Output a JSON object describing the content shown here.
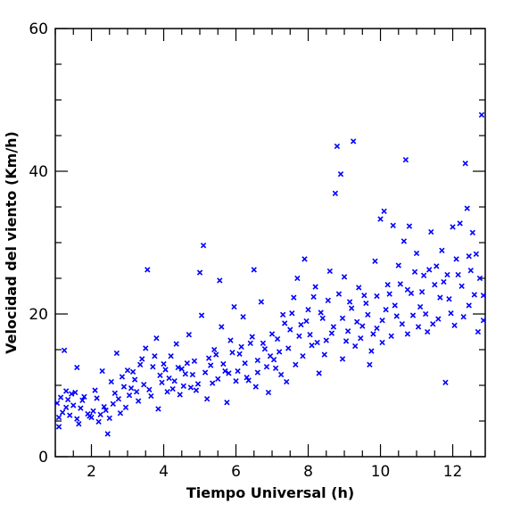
{
  "chart_data": {
    "type": "scatter",
    "xlabel": "Tiempo Universal (h)",
    "ylabel": "Velocidad del viento (Km/h)",
    "xlim": [
      1,
      12.9
    ],
    "ylim": [
      0,
      60
    ],
    "x_ticks": [
      2,
      4,
      6,
      8,
      10,
      12
    ],
    "y_ticks": [
      0,
      20,
      40,
      60
    ],
    "x_tick_labels": [
      "2",
      "4",
      "6",
      "8",
      "10",
      "12"
    ],
    "y_tick_labels": [
      "0",
      "20",
      "40",
      "60"
    ],
    "marker": "x",
    "marker_color": "#0000ff",
    "grid": false,
    "series": [
      {
        "points": [
          [
            1.05,
            7.5
          ],
          [
            1.1,
            4.2
          ],
          [
            1.15,
            8.3
          ],
          [
            1.2,
            6.2
          ],
          [
            1.25,
            14.9
          ],
          [
            1.3,
            9.2
          ],
          [
            1.35,
            8.0
          ],
          [
            1.4,
            5.8
          ],
          [
            1.5,
            7.2
          ],
          [
            1.55,
            9.0
          ],
          [
            1.6,
            12.5
          ],
          [
            1.65,
            4.6
          ],
          [
            1.7,
            6.8
          ],
          [
            1.8,
            8.4
          ],
          [
            1.9,
            6.0
          ],
          [
            2.0,
            5.5
          ],
          [
            2.1,
            9.3
          ],
          [
            2.2,
            4.9
          ],
          [
            2.3,
            12.0
          ],
          [
            2.4,
            6.5
          ],
          [
            2.45,
            3.2
          ],
          [
            2.55,
            10.5
          ],
          [
            2.6,
            7.4
          ],
          [
            2.7,
            14.5
          ],
          [
            2.75,
            8.1
          ],
          [
            2.85,
            11.2
          ],
          [
            2.95,
            6.9
          ],
          [
            3.0,
            12.1
          ],
          [
            3.1,
            9.6
          ],
          [
            3.2,
            10.8
          ],
          [
            3.3,
            7.8
          ],
          [
            3.4,
            13.7
          ],
          [
            3.5,
            15.2
          ],
          [
            3.55,
            26.2
          ],
          [
            3.6,
            9.4
          ],
          [
            3.7,
            12.6
          ],
          [
            3.8,
            16.6
          ],
          [
            3.85,
            6.7
          ],
          [
            3.9,
            11.4
          ],
          [
            4.0,
            13.0
          ],
          [
            4.1,
            9.1
          ],
          [
            4.2,
            14.1
          ],
          [
            4.3,
            10.6
          ],
          [
            4.35,
            15.8
          ],
          [
            4.45,
            8.7
          ],
          [
            4.5,
            12.3
          ],
          [
            4.6,
            11.6
          ],
          [
            4.7,
            17.1
          ],
          [
            4.75,
            9.7
          ],
          [
            4.85,
            13.4
          ],
          [
            4.95,
            10.2
          ],
          [
            5.0,
            25.8
          ],
          [
            5.05,
            19.8
          ],
          [
            5.1,
            29.6
          ],
          [
            5.2,
            8.1
          ],
          [
            5.3,
            12.8
          ],
          [
            5.4,
            15.0
          ],
          [
            5.5,
            10.9
          ],
          [
            5.55,
            24.7
          ],
          [
            5.6,
            18.2
          ],
          [
            5.7,
            12.0
          ],
          [
            5.75,
            7.6
          ],
          [
            5.85,
            16.3
          ],
          [
            5.95,
            21.0
          ],
          [
            6.0,
            10.6
          ],
          [
            6.1,
            14.4
          ],
          [
            6.2,
            19.6
          ],
          [
            6.3,
            11.1
          ],
          [
            6.4,
            15.9
          ],
          [
            6.5,
            26.2
          ],
          [
            6.55,
            9.8
          ],
          [
            6.6,
            13.5
          ],
          [
            6.7,
            21.7
          ],
          [
            6.8,
            15.1
          ],
          [
            6.9,
            9.0
          ],
          [
            7.0,
            17.2
          ],
          [
            7.1,
            12.4
          ],
          [
            7.2,
            14.7
          ],
          [
            7.3,
            19.9
          ],
          [
            7.4,
            10.5
          ],
          [
            7.5,
            17.8
          ],
          [
            7.6,
            22.3
          ],
          [
            7.65,
            12.9
          ],
          [
            7.7,
            25.0
          ],
          [
            7.8,
            18.5
          ],
          [
            7.85,
            14.1
          ],
          [
            7.9,
            27.7
          ],
          [
            8.0,
            20.6
          ],
          [
            8.1,
            15.6
          ],
          [
            8.2,
            23.8
          ],
          [
            8.3,
            11.7
          ],
          [
            8.4,
            19.4
          ],
          [
            8.5,
            16.3
          ],
          [
            8.55,
            21.9
          ],
          [
            8.6,
            26.0
          ],
          [
            8.7,
            18.2
          ],
          [
            8.75,
            36.9
          ],
          [
            8.8,
            43.5
          ],
          [
            8.85,
            22.8
          ],
          [
            8.9,
            39.6
          ],
          [
            8.95,
            13.7
          ],
          [
            9.0,
            25.2
          ],
          [
            9.1,
            17.6
          ],
          [
            9.2,
            20.8
          ],
          [
            9.25,
            44.2
          ],
          [
            9.3,
            15.5
          ],
          [
            9.4,
            23.7
          ],
          [
            9.5,
            18.3
          ],
          [
            9.6,
            21.5
          ],
          [
            9.7,
            12.9
          ],
          [
            9.8,
            17.2
          ],
          [
            9.85,
            27.4
          ],
          [
            9.9,
            22.5
          ],
          [
            10.0,
            33.3
          ],
          [
            10.05,
            19.1
          ],
          [
            10.1,
            34.4
          ],
          [
            10.2,
            24.1
          ],
          [
            10.3,
            16.9
          ],
          [
            10.35,
            32.4
          ],
          [
            10.4,
            21.2
          ],
          [
            10.5,
            26.8
          ],
          [
            10.6,
            18.6
          ],
          [
            10.65,
            30.2
          ],
          [
            10.7,
            41.6
          ],
          [
            10.75,
            23.4
          ],
          [
            10.8,
            32.3
          ],
          [
            10.9,
            19.8
          ],
          [
            11.0,
            28.5
          ],
          [
            11.1,
            21.0
          ],
          [
            11.2,
            25.4
          ],
          [
            11.3,
            17.5
          ],
          [
            11.4,
            31.5
          ],
          [
            11.5,
            24.1
          ],
          [
            11.55,
            26.7
          ],
          [
            11.6,
            19.3
          ],
          [
            11.7,
            28.9
          ],
          [
            11.8,
            10.4
          ],
          [
            11.85,
            25.5
          ],
          [
            11.9,
            22.1
          ],
          [
            12.0,
            32.2
          ],
          [
            12.05,
            18.4
          ],
          [
            12.1,
            27.7
          ],
          [
            12.2,
            32.7
          ],
          [
            12.25,
            23.9
          ],
          [
            12.3,
            19.6
          ],
          [
            12.35,
            41.1
          ],
          [
            12.4,
            34.8
          ],
          [
            12.45,
            28.1
          ],
          [
            12.5,
            26.1
          ],
          [
            12.55,
            31.4
          ],
          [
            12.6,
            22.7
          ],
          [
            12.7,
            17.5
          ],
          [
            12.75,
            25.0
          ],
          [
            12.8,
            47.9
          ],
          [
            12.85,
            22.6
          ],
          [
            1.1,
            5.5
          ],
          [
            1.3,
            6.9
          ],
          [
            1.45,
            8.8
          ],
          [
            1.6,
            5.3
          ],
          [
            1.75,
            7.9
          ],
          [
            1.95,
            5.7
          ],
          [
            2.05,
            6.4
          ],
          [
            2.15,
            8.2
          ],
          [
            2.25,
            5.9
          ],
          [
            2.35,
            7.0
          ],
          [
            2.5,
            5.4
          ],
          [
            2.65,
            8.9
          ],
          [
            2.8,
            6.1
          ],
          [
            2.9,
            9.8
          ],
          [
            3.05,
            8.6
          ],
          [
            3.15,
            11.9
          ],
          [
            3.25,
            9.1
          ],
          [
            3.35,
            12.9
          ],
          [
            3.45,
            10.1
          ],
          [
            3.65,
            8.5
          ],
          [
            3.75,
            14.1
          ],
          [
            3.95,
            10.4
          ],
          [
            4.05,
            12.2
          ],
          [
            4.15,
            11.0
          ],
          [
            4.25,
            9.5
          ],
          [
            4.4,
            12.5
          ],
          [
            4.55,
            9.9
          ],
          [
            4.65,
            13.1
          ],
          [
            4.8,
            11.5
          ],
          [
            4.9,
            9.3
          ],
          [
            5.15,
            11.8
          ],
          [
            5.25,
            13.8
          ],
          [
            5.35,
            10.3
          ],
          [
            5.45,
            14.3
          ],
          [
            5.65,
            13.0
          ],
          [
            5.8,
            11.7
          ],
          [
            5.9,
            14.6
          ],
          [
            6.05,
            12.0
          ],
          [
            6.15,
            15.4
          ],
          [
            6.25,
            13.1
          ],
          [
            6.35,
            10.7
          ],
          [
            6.45,
            16.8
          ],
          [
            6.6,
            11.8
          ],
          [
            6.75,
            15.9
          ],
          [
            6.85,
            12.6
          ],
          [
            6.95,
            14.1
          ],
          [
            7.05,
            13.6
          ],
          [
            7.15,
            16.5
          ],
          [
            7.25,
            11.5
          ],
          [
            7.35,
            18.7
          ],
          [
            7.45,
            15.2
          ],
          [
            7.55,
            20.1
          ],
          [
            7.75,
            16.9
          ],
          [
            7.95,
            19.0
          ],
          [
            8.05,
            17.1
          ],
          [
            8.15,
            22.4
          ],
          [
            8.25,
            16.0
          ],
          [
            8.35,
            20.2
          ],
          [
            8.45,
            14.3
          ],
          [
            8.65,
            17.3
          ],
          [
            8.95,
            19.4
          ],
          [
            9.05,
            16.2
          ],
          [
            9.15,
            21.7
          ],
          [
            9.35,
            18.9
          ],
          [
            9.45,
            16.6
          ],
          [
            9.55,
            22.6
          ],
          [
            9.65,
            19.9
          ],
          [
            9.75,
            14.8
          ],
          [
            9.9,
            18.0
          ],
          [
            10.05,
            16.0
          ],
          [
            10.15,
            20.6
          ],
          [
            10.25,
            22.8
          ],
          [
            10.45,
            19.7
          ],
          [
            10.55,
            24.2
          ],
          [
            10.75,
            17.2
          ],
          [
            10.85,
            22.9
          ],
          [
            10.95,
            25.9
          ],
          [
            11.05,
            18.2
          ],
          [
            11.15,
            23.1
          ],
          [
            11.25,
            20.0
          ],
          [
            11.35,
            26.2
          ],
          [
            11.45,
            18.6
          ],
          [
            11.65,
            22.3
          ],
          [
            11.75,
            24.5
          ],
          [
            11.95,
            20.1
          ],
          [
            12.15,
            25.5
          ],
          [
            12.45,
            21.2
          ],
          [
            12.65,
            28.4
          ],
          [
            12.85,
            19.1
          ]
        ]
      }
    ]
  }
}
